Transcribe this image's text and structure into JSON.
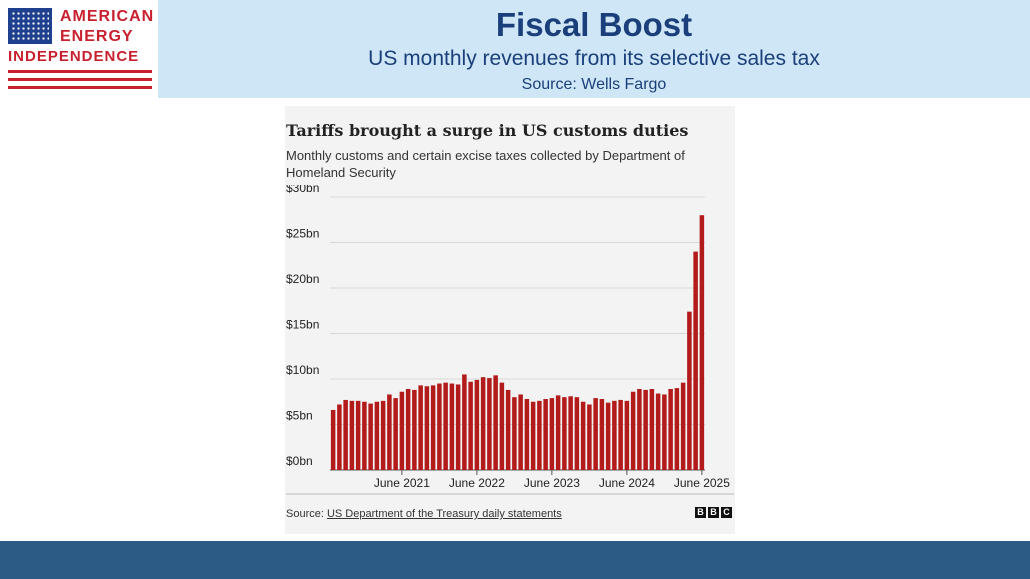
{
  "header": {
    "title": "Fiscal Boost",
    "subtitle": "US monthly revenues from its selective sales tax",
    "source": "Source: Wells Fargo"
  },
  "logo": {
    "line1": "AMERICAN",
    "line2": "ENERGY",
    "line3": "INDEPENDENCE",
    "icon": "us-flag-icon"
  },
  "colors": {
    "bar": "#b31a1a",
    "header_bg": "#cfe6f7",
    "footer_bg": "#2c5b86",
    "title": "#1a3f7a"
  },
  "chart_data": {
    "type": "bar",
    "title": "Tariffs brought a surge in US customs duties",
    "subtitle": "Monthly customs and certain excise taxes collected by Department of Homeland Security",
    "xlabel": "",
    "ylabel": "",
    "ylim": [
      0,
      30
    ],
    "yticks": [
      "$0bn",
      "$5bn",
      "$10bn",
      "$15bn",
      "$20bn",
      "$25bn",
      "$30bn"
    ],
    "xticks": [
      {
        "label": "June 2021",
        "index": 11
      },
      {
        "label": "June 2022",
        "index": 23
      },
      {
        "label": "June 2023",
        "index": 35
      },
      {
        "label": "June 2024",
        "index": 47
      },
      {
        "label": "June 2025",
        "index": 59
      }
    ],
    "grid": true,
    "legend": "none",
    "values": [
      6.6,
      7.2,
      7.7,
      7.6,
      7.6,
      7.5,
      7.3,
      7.5,
      7.6,
      8.3,
      7.9,
      8.6,
      8.9,
      8.8,
      9.3,
      9.2,
      9.3,
      9.5,
      9.6,
      9.5,
      9.4,
      10.5,
      9.7,
      9.9,
      10.2,
      10.1,
      10.4,
      9.6,
      8.8,
      8.0,
      8.3,
      7.8,
      7.5,
      7.6,
      7.8,
      7.9,
      8.2,
      8.0,
      8.1,
      8.0,
      7.5,
      7.2,
      7.9,
      7.8,
      7.4,
      7.6,
      7.7,
      7.6,
      8.6,
      8.9,
      8.8,
      8.9,
      8.4,
      8.3,
      8.9,
      9.0,
      9.6,
      17.4,
      24.0,
      28.0
    ]
  },
  "chart_source": {
    "prefix": "Source: ",
    "link_text": "US Department of the Treasury daily statements"
  },
  "bbc_logo": [
    "B",
    "B",
    "C"
  ]
}
